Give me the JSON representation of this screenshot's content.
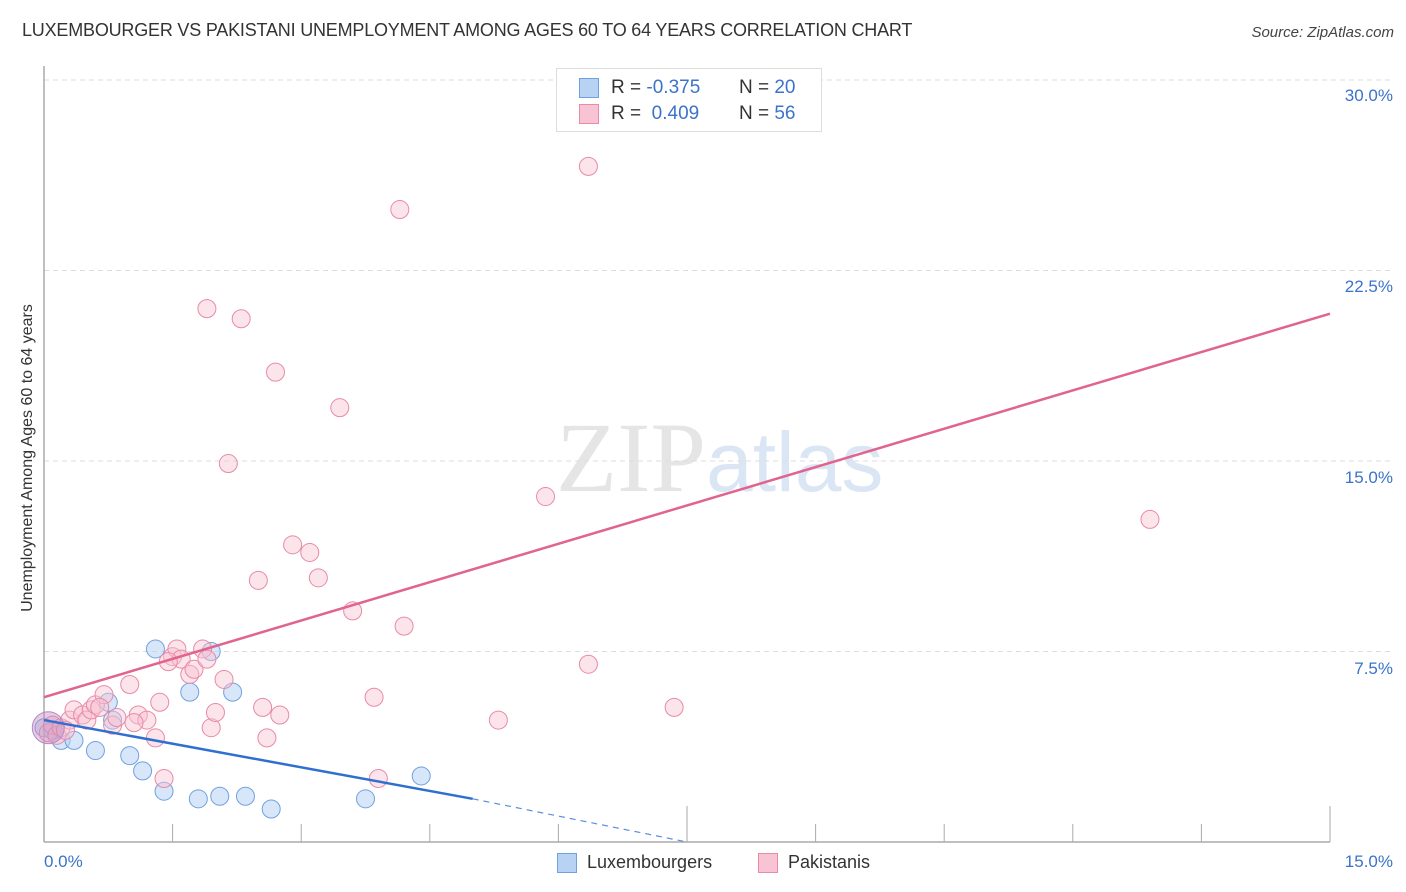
{
  "title": "LUXEMBOURGER VS PAKISTANI UNEMPLOYMENT AMONG AGES 60 TO 64 YEARS CORRELATION CHART",
  "source": "Source: ZipAtlas.com",
  "watermark": {
    "zip": "ZIP",
    "atlas": "atlas"
  },
  "legend": {
    "rows": [
      {
        "r_label": "R =",
        "r_value": "-0.375",
        "n_label": "N =",
        "n_value": "20",
        "color": "#6fa1e0",
        "fill": "#b8d2f4"
      },
      {
        "r_label": "R =",
        "r_value": " 0.409",
        "n_label": "N =",
        "n_value": "56",
        "color": "#e88aa8",
        "fill": "#f8c3d3"
      }
    ]
  },
  "bottom_legend": [
    {
      "label": "Luxembourgers",
      "color": "#6fa1e0",
      "fill": "#b8d2f4"
    },
    {
      "label": "Pakistanis",
      "color": "#e88aa8",
      "fill": "#f8c3d3"
    }
  ],
  "axes": {
    "y_label": "Unemployment Among Ages 60 to 64 years",
    "y_ticks": [
      "30.0%",
      "22.5%",
      "15.0%",
      "7.5%"
    ],
    "x_ticks": [
      "0.0%",
      "15.0%"
    ]
  },
  "chart_data": {
    "type": "scatter",
    "title": "LUXEMBOURGER VS PAKISTANI UNEMPLOYMENT AMONG AGES 60 TO 64 YEARS CORRELATION CHART",
    "xlabel": "",
    "ylabel": "Unemployment Among Ages 60 to 64 years",
    "xlim": [
      0,
      15
    ],
    "ylim": [
      0,
      31
    ],
    "x_tick_labels": [
      "0.0%",
      "15.0%"
    ],
    "y_tick_labels": [
      "7.5%",
      "15.0%",
      "22.5%",
      "30.0%"
    ],
    "grid": true,
    "legend_position": "top-center",
    "series": [
      {
        "name": "Luxembourgers",
        "color": "#4a86d8",
        "R": -0.375,
        "N": 20,
        "trend": {
          "x": [
            0,
            5.0
          ],
          "y": [
            4.8,
            1.7
          ],
          "dashed_extension_to": [
            7.5,
            0
          ]
        },
        "points": [
          [
            0.0,
            4.5
          ],
          [
            0.2,
            4.0
          ],
          [
            0.35,
            4.0
          ],
          [
            0.6,
            3.6
          ],
          [
            0.8,
            4.8
          ],
          [
            0.75,
            5.5
          ],
          [
            1.0,
            3.4
          ],
          [
            1.15,
            2.8
          ],
          [
            1.4,
            2.0
          ],
          [
            1.3,
            7.6
          ],
          [
            1.7,
            5.9
          ],
          [
            1.8,
            1.7
          ],
          [
            1.95,
            7.5
          ],
          [
            2.05,
            1.8
          ],
          [
            2.2,
            5.9
          ],
          [
            2.35,
            1.8
          ],
          [
            2.65,
            1.3
          ],
          [
            3.75,
            1.7
          ],
          [
            4.4,
            2.6
          ],
          [
            0.1,
            4.4
          ]
        ]
      },
      {
        "name": "Pakistanis",
        "color": "#e0648f",
        "R": 0.409,
        "N": 56,
        "trend": {
          "x": [
            0,
            15.0
          ],
          "y": [
            5.7,
            20.8
          ]
        },
        "points": [
          [
            0.05,
            4.3
          ],
          [
            0.1,
            4.6
          ],
          [
            0.15,
            4.2
          ],
          [
            0.2,
            4.5
          ],
          [
            0.3,
            4.8
          ],
          [
            0.35,
            5.2
          ],
          [
            0.45,
            5.0
          ],
          [
            0.5,
            4.8
          ],
          [
            0.55,
            5.2
          ],
          [
            0.6,
            5.4
          ],
          [
            0.7,
            5.8
          ],
          [
            0.8,
            4.6
          ],
          [
            0.85,
            4.9
          ],
          [
            1.0,
            6.2
          ],
          [
            1.1,
            5.0
          ],
          [
            1.2,
            4.8
          ],
          [
            1.3,
            4.1
          ],
          [
            1.35,
            5.5
          ],
          [
            1.4,
            2.5
          ],
          [
            1.5,
            7.3
          ],
          [
            1.55,
            7.6
          ],
          [
            1.6,
            7.2
          ],
          [
            1.7,
            6.6
          ],
          [
            1.75,
            6.8
          ],
          [
            1.85,
            7.6
          ],
          [
            1.9,
            7.2
          ],
          [
            1.95,
            4.5
          ],
          [
            2.0,
            5.1
          ],
          [
            2.1,
            6.4
          ],
          [
            1.9,
            21.0
          ],
          [
            2.15,
            14.9
          ],
          [
            2.3,
            20.6
          ],
          [
            2.5,
            10.3
          ],
          [
            2.55,
            5.3
          ],
          [
            2.6,
            4.1
          ],
          [
            2.7,
            18.5
          ],
          [
            2.75,
            5.0
          ],
          [
            2.9,
            11.7
          ],
          [
            3.1,
            11.4
          ],
          [
            3.2,
            10.4
          ],
          [
            3.45,
            17.1
          ],
          [
            3.6,
            9.1
          ],
          [
            3.85,
            5.7
          ],
          [
            3.9,
            2.5
          ],
          [
            4.15,
            24.9
          ],
          [
            4.2,
            8.5
          ],
          [
            5.3,
            4.8
          ],
          [
            5.85,
            13.6
          ],
          [
            6.35,
            7.0
          ],
          [
            6.35,
            26.6
          ],
          [
            7.35,
            5.3
          ],
          [
            12.9,
            12.7
          ],
          [
            0.25,
            4.4
          ],
          [
            0.65,
            5.3
          ],
          [
            1.05,
            4.7
          ],
          [
            1.45,
            7.1
          ]
        ]
      }
    ]
  }
}
